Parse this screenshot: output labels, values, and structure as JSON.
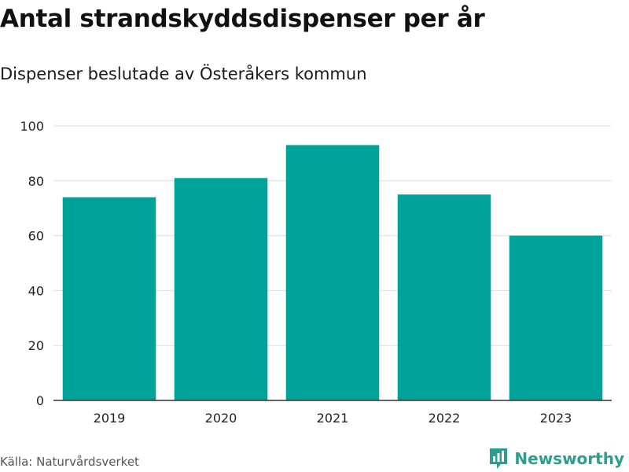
{
  "header": {
    "title": "Antal strandskyddsdispenser per år",
    "subtitle": "Dispenser beslutade av Österåkers kommun"
  },
  "footer": {
    "source": "Källa: Naturvårdsverket",
    "brand": "Newsworthy"
  },
  "colors": {
    "bar": "#00a39a",
    "grid": "#dddddd",
    "axis": "#333333",
    "brand": "#2b9e8f"
  },
  "chart_data": {
    "type": "bar",
    "categories": [
      "2019",
      "2020",
      "2021",
      "2022",
      "2023"
    ],
    "values": [
      74,
      81,
      93,
      75,
      60
    ],
    "yticks": [
      0,
      20,
      40,
      60,
      80,
      100
    ],
    "ylim": [
      0,
      100
    ],
    "xlabel": "",
    "ylabel": "",
    "grid": true
  }
}
